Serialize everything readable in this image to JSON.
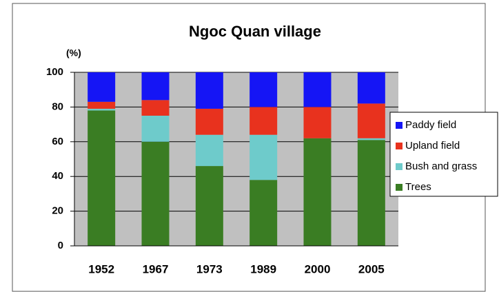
{
  "chart_data": {
    "type": "stacked_bar",
    "title": "Ngoc Quan village",
    "y_label": "(%)",
    "categories": [
      "1952",
      "1967",
      "1973",
      "1989",
      "2000",
      "2005"
    ],
    "series": [
      {
        "name": "Paddy field",
        "color": "#1515f5",
        "values": [
          17,
          16,
          21,
          20,
          20,
          18
        ]
      },
      {
        "name": "Upland field",
        "color": "#e8321e",
        "values": [
          4,
          9,
          15,
          16,
          18,
          20
        ]
      },
      {
        "name": "Bush and grass",
        "color": "#6ecbcb",
        "values": [
          1,
          15,
          18,
          26,
          0,
          1
        ]
      },
      {
        "name": "Trees",
        "color": "#3a7d23",
        "values": [
          78,
          60,
          46,
          38,
          62,
          61
        ]
      }
    ],
    "ylim": [
      0,
      100
    ],
    "yticks": [
      0,
      20,
      40,
      60,
      80,
      100
    ],
    "grid": true,
    "legend": "right"
  }
}
